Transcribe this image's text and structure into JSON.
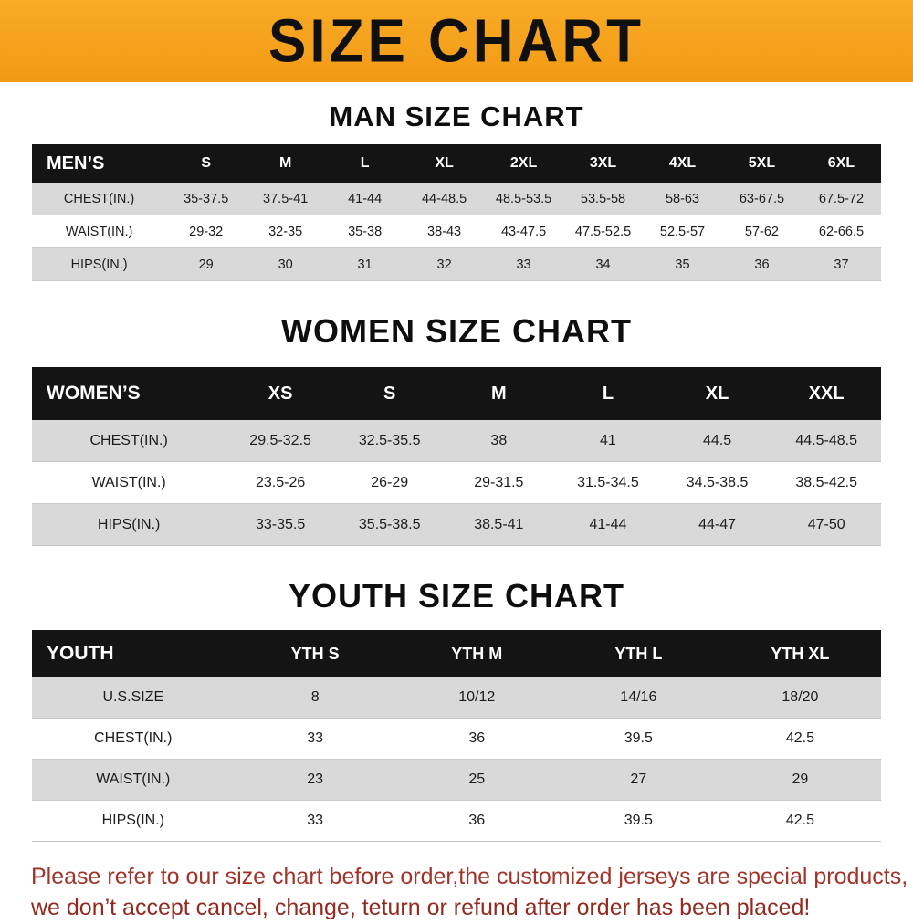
{
  "banner": {
    "title": "SIZE CHART",
    "bg_color": "#f29a15",
    "text_color": "#101010"
  },
  "sections": [
    {
      "key": "men",
      "title": "MAN SIZE CHART",
      "header": [
        "MEN’S",
        "S",
        "M",
        "L",
        "XL",
        "2XL",
        "3XL",
        "4XL",
        "5XL",
        "6XL"
      ],
      "rows": [
        {
          "label": "CHEST(IN.)",
          "values": [
            "35-37.5",
            "37.5-41",
            "41-44",
            "44-48.5",
            "48.5-53.5",
            "53.5-58",
            "58-63",
            "63-67.5",
            "67.5-72"
          ]
        },
        {
          "label": "WAIST(IN.)",
          "values": [
            "29-32",
            "32-35",
            "35-38",
            "38-43",
            "43-47.5",
            "47.5-52.5",
            "52.5-57",
            "57-62",
            "62-66.5"
          ]
        },
        {
          "label": "HIPS(IN.)",
          "values": [
            "29",
            "30",
            "31",
            "32",
            "33",
            "34",
            "35",
            "36",
            "37"
          ]
        }
      ]
    },
    {
      "key": "women",
      "title": "WOMEN SIZE CHART",
      "header": [
        "WOMEN’S",
        "XS",
        "S",
        "M",
        "L",
        "XL",
        "XXL"
      ],
      "rows": [
        {
          "label": "CHEST(IN.)",
          "values": [
            "29.5-32.5",
            "32.5-35.5",
            "38",
            "41",
            "44.5",
            "44.5-48.5"
          ]
        },
        {
          "label": "WAIST(IN.)",
          "values": [
            "23.5-26",
            "26-29",
            "29-31.5",
            "31.5-34.5",
            "34.5-38.5",
            "38.5-42.5"
          ]
        },
        {
          "label": "HIPS(IN.)",
          "values": [
            "33-35.5",
            "35.5-38.5",
            "38.5-41",
            "41-44",
            "44-47",
            "47-50"
          ]
        }
      ]
    },
    {
      "key": "youth",
      "title": "YOUTH SIZE CHART",
      "header": [
        "YOUTH",
        "YTH S",
        "YTH M",
        "YTH L",
        "YTH XL"
      ],
      "rows": [
        {
          "label": "U.S.SIZE",
          "values": [
            "8",
            "10/12",
            "14/16",
            "18/20"
          ]
        },
        {
          "label": "CHEST(IN.)",
          "values": [
            "33",
            "36",
            "39.5",
            "42.5"
          ]
        },
        {
          "label": "WAIST(IN.)",
          "values": [
            "23",
            "25",
            "27",
            "29"
          ]
        },
        {
          "label": "HIPS(IN.)",
          "values": [
            "33",
            "36",
            "39.5",
            "42.5"
          ]
        }
      ]
    }
  ],
  "footer": {
    "line1": "Please refer to our size chart before order,the customized jerseys are special products,",
    "line2": "we don’t accept cancel, change, teturn or refund after order has been placed!",
    "text_color": "#a23329"
  }
}
